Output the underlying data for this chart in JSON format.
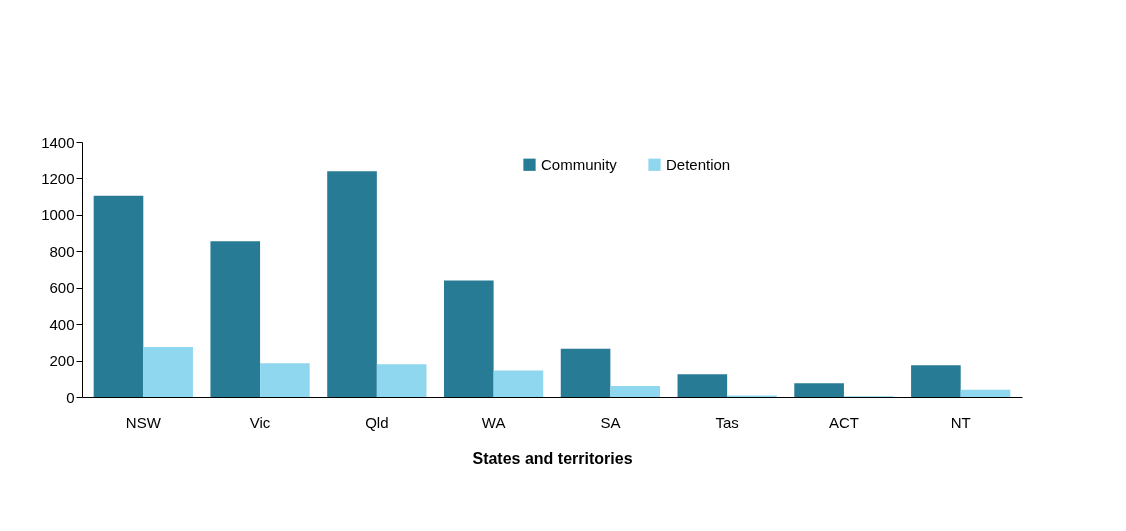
{
  "chart_data": {
    "type": "bar",
    "xlabel": "States and territories",
    "categories": [
      "NSW",
      "Vic",
      "Qld",
      "WA",
      "SA",
      "Tas",
      "ACT",
      "NT"
    ],
    "series": [
      {
        "name": "Community",
        "color": "#277b95",
        "values": [
          1105,
          855,
          1240,
          640,
          265,
          125,
          75,
          175
        ]
      },
      {
        "name": "Detention",
        "color": "#8fd6ef",
        "values": [
          275,
          185,
          180,
          145,
          60,
          8,
          4,
          40
        ]
      }
    ],
    "ylim": [
      0,
      1400
    ],
    "yticks": [
      0,
      200,
      400,
      600,
      800,
      1000,
      1200,
      1400
    ],
    "grid": false,
    "legend": "top"
  }
}
